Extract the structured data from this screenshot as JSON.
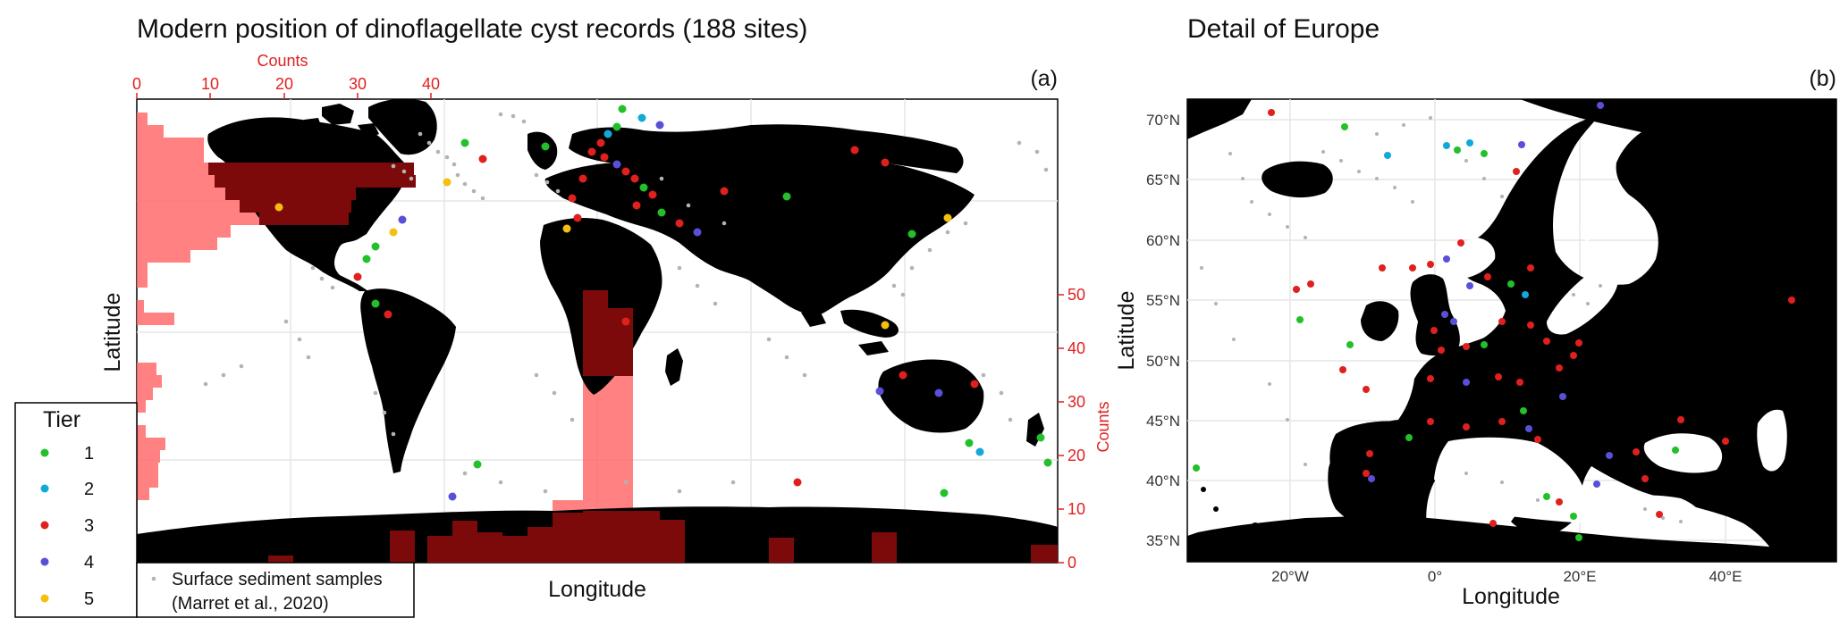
{
  "titles": {
    "left": "Modern position of dinoflagellate cyst records (188 sites)",
    "right": "Detail of Europe",
    "panel_a": "(a)",
    "panel_b": "(b)"
  },
  "map_a": {
    "xlabel": "Longitude",
    "ylabel": "Latitude",
    "top_axis_label": "Counts",
    "top_ticks": [
      "0",
      "10",
      "20",
      "30",
      "40"
    ],
    "right_axis_label": "Counts",
    "right_ticks": [
      "0",
      "10",
      "20",
      "30",
      "40",
      "50"
    ]
  },
  "map_b": {
    "xlabel": "Longitude",
    "ylabel": "Latitude",
    "lat_ticks": [
      "35°N",
      "40°N",
      "45°N",
      "50°N",
      "55°N",
      "60°N",
      "65°N",
      "70°N"
    ],
    "lon_ticks": [
      "20°W",
      "0°",
      "20°E",
      "40°E"
    ]
  },
  "legend": {
    "title": "Tier",
    "tiers": [
      {
        "label": "1",
        "color": "#22c02a"
      },
      {
        "label": "2",
        "color": "#13a9d6"
      },
      {
        "label": "3",
        "color": "#e0201e"
      },
      {
        "label": "4",
        "color": "#5a4fd8"
      },
      {
        "label": "5",
        "color": "#f3c010"
      }
    ],
    "samples_line1": "Surface sediment samples",
    "samples_line2": "(Marret et al., 2020)"
  },
  "colors": {
    "land": "#000000",
    "hist": "#ff6b6b",
    "hist_dark": "#7d0a0a",
    "axis_red": "#e02020",
    "sample": "#b3b3b3",
    "grid": "#e5e5e5"
  }
}
